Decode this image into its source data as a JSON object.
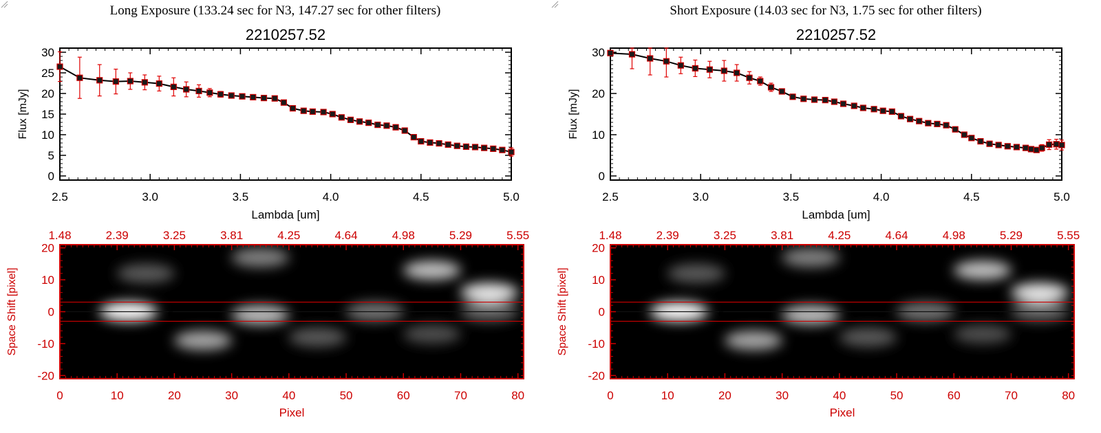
{
  "panels": [
    {
      "exposure_title": "Long Exposure (133.24 sec for N3, 147.27 sec for other filters)",
      "chart_data": [
        {
          "type": "line",
          "title": "2210257.52",
          "xlabel": "Lambda [um]",
          "ylabel": "Flux [mJy]",
          "xlim": [
            2.5,
            5.0
          ],
          "ylim": [
            -1,
            31
          ],
          "xticks": [
            "2.5",
            "3.0",
            "3.5",
            "4.0",
            "4.5",
            "5.0"
          ],
          "yticks": [
            "0",
            "5",
            "10",
            "15",
            "20",
            "25",
            "30"
          ],
          "marker_color": "#cc0000",
          "line_color": "#000000",
          "x": [
            2.5,
            2.61,
            2.72,
            2.81,
            2.89,
            2.97,
            3.05,
            3.13,
            3.2,
            3.27,
            3.33,
            3.39,
            3.45,
            3.51,
            3.57,
            3.63,
            3.69,
            3.74,
            3.79,
            3.85,
            3.9,
            3.96,
            4.01,
            4.06,
            4.11,
            4.16,
            4.21,
            4.26,
            4.31,
            4.36,
            4.41,
            4.46,
            4.5,
            4.55,
            4.6,
            4.65,
            4.7,
            4.75,
            4.8,
            4.85,
            4.9,
            4.95,
            5.0
          ],
          "y": [
            26.5,
            23.8,
            23.2,
            22.9,
            23.0,
            22.7,
            22.4,
            21.6,
            21.0,
            20.6,
            20.2,
            19.8,
            19.5,
            19.3,
            19.1,
            18.9,
            18.8,
            17.8,
            16.4,
            15.8,
            15.6,
            15.5,
            15.0,
            14.2,
            13.6,
            13.2,
            12.9,
            12.4,
            12.2,
            11.8,
            11.0,
            9.4,
            8.4,
            8.1,
            7.9,
            7.6,
            7.3,
            7.1,
            7.0,
            6.8,
            6.6,
            6.3,
            5.8
          ],
          "yerr": [
            3.6,
            5.0,
            3.8,
            3.0,
            2.0,
            1.8,
            1.8,
            2.2,
            1.8,
            1.5,
            1.0,
            0.7,
            0.5,
            0.5,
            0.5,
            0.5,
            0.5,
            0.5,
            0.5,
            0.5,
            0.5,
            0.5,
            0.5,
            0.5,
            0.5,
            0.5,
            0.5,
            0.5,
            0.5,
            0.5,
            0.5,
            0.5,
            0.5,
            0.5,
            0.5,
            0.5,
            0.5,
            0.5,
            0.5,
            0.5,
            0.5,
            0.5,
            1.0
          ]
        },
        {
          "type": "heatmap",
          "xlabel": "Pixel",
          "ylabel": "Space Shift [pixel]",
          "xlim": [
            0,
            81
          ],
          "ylim": [
            -21,
            21
          ],
          "xticks": [
            "0",
            "10",
            "20",
            "30",
            "40",
            "50",
            "60",
            "70",
            "80"
          ],
          "yticks": [
            "-20",
            "-10",
            "0",
            "10",
            "20"
          ],
          "top_ticks": [
            "1.48",
            "2.39",
            "3.25",
            "3.81",
            "4.25",
            "4.64",
            "4.98",
            "5.29",
            "5.55"
          ],
          "aperture_lines": [
            3,
            -3
          ],
          "axis_color": "#cc0000",
          "blobs": [
            {
              "x": 12,
              "y": 0,
              "intensity": 1.0
            },
            {
              "x": 35,
              "y": -1,
              "intensity": 0.75
            },
            {
              "x": 55,
              "y": 0,
              "intensity": 0.45
            },
            {
              "x": 75,
              "y": 0,
              "intensity": 0.4
            },
            {
              "x": 25,
              "y": -9,
              "intensity": 0.65
            },
            {
              "x": 45,
              "y": -8,
              "intensity": 0.35
            },
            {
              "x": 65,
              "y": -7,
              "intensity": 0.3
            },
            {
              "x": 75,
              "y": 6,
              "intensity": 0.9
            },
            {
              "x": 65,
              "y": 13,
              "intensity": 0.75
            },
            {
              "x": 15,
              "y": 12,
              "intensity": 0.35
            },
            {
              "x": 35,
              "y": 17,
              "intensity": 0.5
            }
          ]
        }
      ]
    },
    {
      "exposure_title": "Short Exposure (14.03 sec for N3, 1.75 sec for other filters)",
      "chart_data": [
        {
          "type": "line",
          "title": "2210257.52",
          "xlabel": "Lambda [um]",
          "ylabel": "Flux [mJy]",
          "xlim": [
            2.5,
            5.0
          ],
          "ylim": [
            -1,
            31
          ],
          "xticks": [
            "2.5",
            "3.0",
            "3.5",
            "4.0",
            "4.5",
            "5.0"
          ],
          "yticks": [
            "0",
            "10",
            "20",
            "30"
          ],
          "marker_color": "#cc0000",
          "line_color": "#000000",
          "x": [
            2.5,
            2.62,
            2.72,
            2.81,
            2.89,
            2.97,
            3.05,
            3.13,
            3.2,
            3.27,
            3.33,
            3.39,
            3.45,
            3.51,
            3.57,
            3.63,
            3.69,
            3.74,
            3.79,
            3.85,
            3.9,
            3.96,
            4.01,
            4.06,
            4.11,
            4.16,
            4.21,
            4.26,
            4.31,
            4.36,
            4.41,
            4.46,
            4.5,
            4.55,
            4.6,
            4.65,
            4.7,
            4.75,
            4.8,
            4.83,
            4.86,
            4.89,
            4.93,
            4.97,
            5.0
          ],
          "y": [
            29.8,
            29.5,
            28.5,
            27.8,
            26.8,
            26.1,
            25.8,
            25.5,
            25.0,
            23.8,
            23.0,
            21.5,
            20.5,
            19.2,
            18.7,
            18.5,
            18.4,
            18.0,
            17.5,
            17.0,
            16.5,
            16.2,
            15.8,
            15.6,
            14.5,
            13.8,
            13.3,
            12.8,
            12.6,
            12.3,
            11.3,
            10.0,
            9.2,
            8.4,
            7.8,
            7.5,
            7.2,
            7.0,
            6.8,
            6.5,
            6.3,
            6.8,
            7.6,
            7.7,
            7.5
          ],
          "yerr": [
            0.5,
            3.5,
            4.0,
            3.8,
            2.0,
            2.0,
            2.0,
            2.5,
            2.0,
            1.5,
            1.0,
            1.0,
            0.5,
            0.5,
            0.5,
            0.5,
            0.5,
            0.5,
            0.5,
            0.5,
            0.5,
            0.5,
            0.5,
            0.5,
            0.5,
            0.5,
            0.5,
            0.5,
            0.5,
            0.5,
            0.5,
            0.5,
            0.5,
            0.5,
            0.5,
            0.5,
            0.5,
            0.5,
            0.5,
            0.5,
            0.5,
            0.8,
            1.2,
            1.2,
            1.2
          ]
        },
        {
          "type": "heatmap",
          "xlabel": "Pixel",
          "ylabel": "Space Shift [pixel]",
          "xlim": [
            0,
            81
          ],
          "ylim": [
            -21,
            21
          ],
          "xticks": [
            "0",
            "10",
            "20",
            "30",
            "40",
            "50",
            "60",
            "70",
            "80"
          ],
          "yticks": [
            "-20",
            "-10",
            "0",
            "10",
            "20"
          ],
          "top_ticks": [
            "1.48",
            "2.39",
            "3.25",
            "3.81",
            "4.25",
            "4.64",
            "4.98",
            "5.29",
            "5.55"
          ],
          "aperture_lines": [
            3,
            -3
          ],
          "axis_color": "#cc0000",
          "blobs": [
            {
              "x": 12,
              "y": 0,
              "intensity": 1.0
            },
            {
              "x": 35,
              "y": -1,
              "intensity": 0.75
            },
            {
              "x": 55,
              "y": 0,
              "intensity": 0.45
            },
            {
              "x": 75,
              "y": 0,
              "intensity": 0.4
            },
            {
              "x": 25,
              "y": -9,
              "intensity": 0.65
            },
            {
              "x": 45,
              "y": -8,
              "intensity": 0.35
            },
            {
              "x": 65,
              "y": -7,
              "intensity": 0.3
            },
            {
              "x": 75,
              "y": 6,
              "intensity": 0.9
            },
            {
              "x": 65,
              "y": 13,
              "intensity": 0.75
            },
            {
              "x": 15,
              "y": 12,
              "intensity": 0.35
            },
            {
              "x": 35,
              "y": 17,
              "intensity": 0.5
            }
          ]
        }
      ]
    }
  ]
}
